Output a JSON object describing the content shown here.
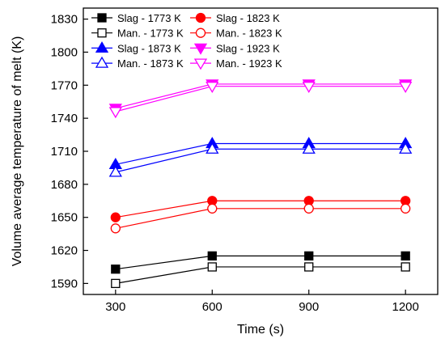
{
  "chart_data": {
    "type": "line",
    "title": "",
    "xlabel": "Time (s)",
    "ylabel": "Volume average temperature of melt (K)",
    "xlim": [
      200,
      1300
    ],
    "ylim": [
      1580,
      1840
    ],
    "x": [
      300,
      600,
      900,
      1200
    ],
    "xticks": [
      300,
      600,
      900,
      1200
    ],
    "yticks": [
      1590,
      1620,
      1650,
      1680,
      1710,
      1740,
      1770,
      1800,
      1830
    ],
    "grid": false,
    "legend_position": "top-left",
    "series": [
      {
        "name": "Slag - 1773 K",
        "color": "#000000",
        "marker": "square",
        "filled": true,
        "values": [
          1603,
          1615,
          1615,
          1615
        ]
      },
      {
        "name": "Man. - 1773 K",
        "color": "#000000",
        "marker": "square",
        "filled": false,
        "values": [
          1590,
          1605,
          1605,
          1605
        ]
      },
      {
        "name": "Slag - 1873 K",
        "color": "#0000ff",
        "marker": "triangle-up",
        "filled": true,
        "values": [
          1698,
          1717,
          1717,
          1717
        ]
      },
      {
        "name": "Man. - 1873 K",
        "color": "#0000ff",
        "marker": "triangle-up",
        "filled": false,
        "values": [
          1691,
          1712,
          1712,
          1712
        ]
      },
      {
        "name": "Slag - 1823 K",
        "color": "#ff0000",
        "marker": "circle",
        "filled": true,
        "values": [
          1650,
          1665,
          1665,
          1665
        ]
      },
      {
        "name": "Man. - 1823 K",
        "color": "#ff0000",
        "marker": "circle",
        "filled": false,
        "values": [
          1640,
          1658,
          1658,
          1658
        ]
      },
      {
        "name": "Slag - 1923 K",
        "color": "#ff00ff",
        "marker": "triangle-down",
        "filled": true,
        "values": [
          1749,
          1771,
          1771,
          1771
        ]
      },
      {
        "name": "Man. - 1923 K",
        "color": "#ff00ff",
        "marker": "triangle-down",
        "filled": false,
        "values": [
          1746,
          1769,
          1769,
          1769
        ]
      }
    ]
  }
}
